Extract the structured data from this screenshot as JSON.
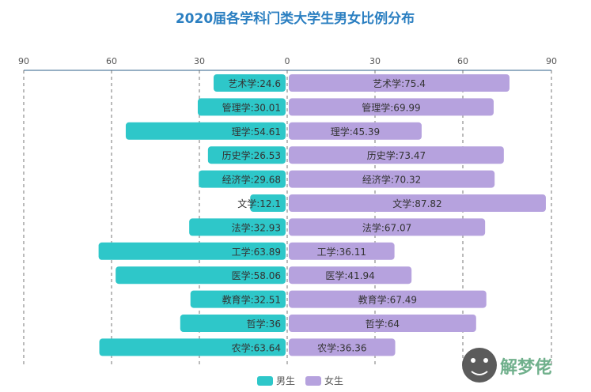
{
  "chart_data": {
    "type": "bar",
    "orientation": "horizontal-diverging",
    "title": "2020届各学科门类大学生男女比例分布",
    "categories": [
      "艺术学",
      "管理学",
      "理学",
      "历史学",
      "经济学",
      "文学",
      "法学",
      "工学",
      "医学",
      "教育学",
      "哲学",
      "农学"
    ],
    "series": [
      {
        "name": "男生",
        "color": "#2ec7c9",
        "side": "left",
        "values": [
          24.6,
          30.01,
          54.61,
          26.53,
          29.68,
          12.1,
          32.93,
          63.89,
          58.06,
          32.51,
          36,
          63.64
        ]
      },
      {
        "name": "女生",
        "color": "#b6a2de",
        "side": "right",
        "values": [
          75.4,
          69.99,
          45.39,
          73.47,
          70.32,
          87.82,
          67.07,
          36.11,
          41.94,
          67.49,
          64,
          36.36
        ]
      }
    ],
    "labels_male": [
      "艺术学:24.6",
      "管理学:30.01",
      "理学:54.61",
      "历史学:26.53",
      "经济学:29.68",
      "文学:12.1",
      "法学:32.93",
      "工学:63.89",
      "医学:58.06",
      "教育学:32.51",
      "哲学:36",
      "农学:63.64"
    ],
    "labels_female": [
      "艺术学:75.4",
      "管理学:69.99",
      "理学:45.39",
      "历史学:73.47",
      "经济学:70.32",
      "文学:87.82",
      "法学:67.07",
      "工学:36.11",
      "医学:41.94",
      "教育学:67.49",
      "哲学:64",
      "农学:36.36"
    ],
    "x_ticks_left": [
      "90",
      "60",
      "30"
    ],
    "x_tick_zero": "0",
    "x_ticks_right": [
      "30",
      "60",
      "90"
    ],
    "xlim": [
      -90,
      90
    ],
    "grid": true,
    "legend_position": "bottom-center"
  },
  "watermark": "解梦佬"
}
